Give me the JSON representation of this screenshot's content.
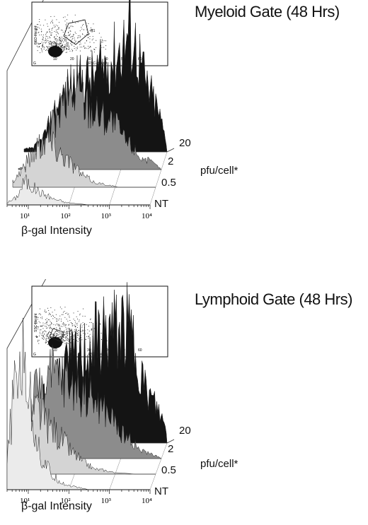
{
  "chart_data": [
    {
      "type": "area",
      "title": "Myeloid Gate (48 Hrs)",
      "xlabel": "β-gal Intensity",
      "xscale": "log",
      "x_ticks": [
        "10¹",
        "10²",
        "10³",
        "10⁴"
      ],
      "z_label": "pfu/cell*",
      "series": [
        {
          "name": "NT",
          "fill": "#ebebeb",
          "x": [
            3,
            5,
            8,
            12,
            20,
            40,
            80,
            150,
            300,
            600,
            1200,
            3000,
            10000
          ],
          "values": [
            2,
            6,
            20,
            15,
            10,
            5,
            2,
            1,
            0,
            0,
            0,
            0,
            0
          ]
        },
        {
          "name": "0.5",
          "fill": "#d4d4d4",
          "x": [
            3,
            5,
            8,
            12,
            20,
            40,
            80,
            150,
            300,
            600,
            1200,
            3000,
            10000
          ],
          "values": [
            5,
            15,
            25,
            35,
            40,
            30,
            20,
            10,
            4,
            2,
            0,
            0,
            0
          ]
        },
        {
          "name": "2",
          "fill": "#8c8c8c",
          "x": [
            3,
            5,
            8,
            12,
            20,
            40,
            80,
            150,
            300,
            600,
            1200,
            3000,
            10000
          ],
          "values": [
            1,
            3,
            10,
            20,
            35,
            55,
            65,
            55,
            45,
            40,
            25,
            10,
            0
          ]
        },
        {
          "name": "20",
          "fill": "#141414",
          "x": [
            3,
            5,
            8,
            12,
            20,
            40,
            80,
            150,
            300,
            600,
            1200,
            3000,
            10000
          ],
          "values": [
            2,
            4,
            10,
            22,
            40,
            55,
            60,
            62,
            72,
            82,
            100,
            55,
            5
          ]
        }
      ],
      "inset": {
        "ylabel": "SSC-Height",
        "xlabel": "FSC-Height",
        "x_ticks": [
          "10",
          "20",
          "30",
          "40",
          "50",
          "60"
        ],
        "gate": "R1",
        "corner": "G"
      }
    },
    {
      "type": "area",
      "title": "Lymphoid Gate (48 Hrs)",
      "xlabel": "β-gal Intensity",
      "xscale": "log",
      "x_ticks": [
        "10¹",
        "10²",
        "10³",
        "10⁴"
      ],
      "z_label": "pfu/cell*",
      "series": [
        {
          "name": "NT",
          "fill": "#ebebeb",
          "x": [
            3,
            4,
            6,
            9,
            12,
            20,
            40,
            80,
            150,
            300,
            1000,
            3000,
            10000
          ],
          "values": [
            20,
            65,
            100,
            95,
            60,
            25,
            10,
            4,
            2,
            0,
            0,
            0,
            0
          ]
        },
        {
          "name": "0.5",
          "fill": "#d4d4d4",
          "x": [
            3,
            4,
            6,
            9,
            12,
            20,
            40,
            80,
            150,
            300,
            1000,
            3000,
            10000
          ],
          "values": [
            4,
            12,
            30,
            45,
            50,
            40,
            30,
            18,
            10,
            4,
            1,
            0,
            0
          ]
        },
        {
          "name": "2",
          "fill": "#8c8c8c",
          "x": [
            3,
            4,
            6,
            9,
            12,
            20,
            40,
            80,
            150,
            300,
            1000,
            3000,
            10000
          ],
          "values": [
            5,
            20,
            45,
            55,
            62,
            65,
            60,
            55,
            50,
            40,
            20,
            6,
            0
          ]
        },
        {
          "name": "20",
          "fill": "#141414",
          "x": [
            3,
            4,
            6,
            9,
            12,
            20,
            40,
            80,
            150,
            300,
            1000,
            3000,
            10000
          ],
          "values": [
            2,
            8,
            20,
            35,
            45,
            55,
            65,
            70,
            80,
            88,
            92,
            40,
            8
          ]
        }
      ],
      "inset": {
        "ylabel": "SSC-Height",
        "xlabel": "FSC-Height",
        "x_ticks": [
          "10",
          "20",
          "30",
          "40",
          "50",
          "60"
        ],
        "gate": "R1",
        "corner": "G"
      }
    }
  ]
}
